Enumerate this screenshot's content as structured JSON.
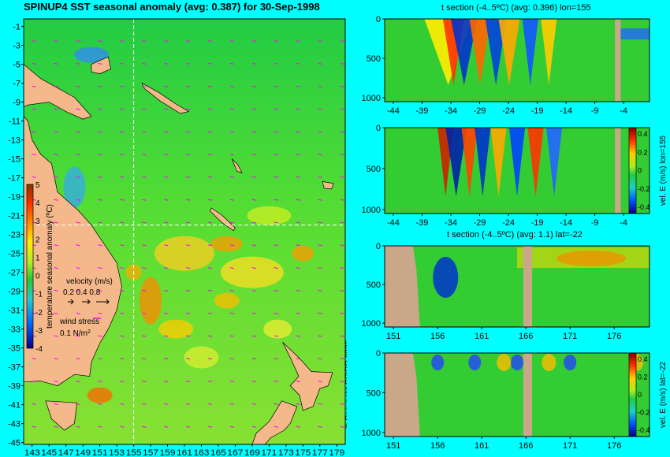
{
  "main_title": "SPINUP4 SST seasonal anomaly (avg: 0.387) for 30-Sep-1998",
  "copyright": "© Copyright CSIRO 2006",
  "colors": {
    "background": "#00ffff",
    "land": "#f5b88a",
    "section_land": "#c8a888",
    "field_base": "#33cc33",
    "warm": "#ff8800",
    "cold": "#0044ff",
    "vector": "#ff00ff",
    "crosshair": "#ffffff"
  },
  "map": {
    "lat_labels": [
      "-1",
      "-3",
      "-5",
      "-7",
      "-9",
      "-11",
      "-13",
      "-15",
      "-17",
      "-19",
      "-21",
      "-23",
      "-25",
      "-27",
      "-29",
      "-31",
      "-33",
      "-35",
      "-37",
      "-39",
      "-41",
      "-43",
      "-45"
    ],
    "lon_labels": [
      "143",
      "145",
      "147",
      "149",
      "151",
      "153",
      "155",
      "157",
      "159",
      "161",
      "163",
      "165",
      "167",
      "169",
      "171",
      "173",
      "175",
      "177",
      "179"
    ],
    "crosshair": {
      "lon": 155,
      "lat": -22
    },
    "colorbar": {
      "label": "temperature seasonal anomaly (ºC)",
      "ticks": [
        "5",
        "4",
        "3",
        "2",
        "1",
        "0",
        "-1",
        "-2",
        "-3",
        "-4"
      ]
    },
    "velocity_legend": {
      "title": "velocity (m/s)",
      "values": "0.2 0.4 0.8"
    },
    "wind_legend": {
      "title": "wind stress",
      "value": "0.1 N/m",
      "sup": "2"
    }
  },
  "chart_data": [
    {
      "type": "heatmap",
      "title": "t section (-4..5ºC) (avg: 0.396) lon=155",
      "x_ticks": [
        "-44",
        "-39",
        "-34",
        "-29",
        "-24",
        "-19",
        "-14",
        "-9",
        "-4"
      ],
      "y_ticks": [
        "0",
        "500",
        "1000"
      ],
      "xlim": [
        -45.5,
        0.5
      ],
      "ylim": [
        0,
        1050
      ]
    },
    {
      "type": "heatmap",
      "title": "",
      "x_ticks": [
        "-44",
        "-39",
        "-34",
        "-29",
        "-24",
        "-19",
        "-14",
        "-9",
        "-4"
      ],
      "y_ticks": [
        "0",
        "500",
        "1000"
      ],
      "xlim": [
        -45.5,
        0.5
      ],
      "ylim": [
        0,
        1050
      ],
      "colorbar_label": "vel. E (m/s) lon=155",
      "colorbar_ticks": [
        "0.4",
        "0.2",
        "0",
        "-0.2",
        "-0.4"
      ]
    },
    {
      "type": "heatmap",
      "title": "t section (-4..5ºC) (avg: 1.1) lat=-22",
      "x_ticks": [
        "151",
        "156",
        "161",
        "166",
        "171",
        "176"
      ],
      "y_ticks": [
        "0",
        "500",
        "1000"
      ],
      "xlim": [
        150,
        180
      ],
      "ylim": [
        0,
        1050
      ]
    },
    {
      "type": "heatmap",
      "title": "",
      "x_ticks": [
        "151",
        "156",
        "161",
        "166",
        "171",
        "176"
      ],
      "y_ticks": [
        "0",
        "500",
        "1000"
      ],
      "xlim": [
        150,
        180
      ],
      "ylim": [
        0,
        1050
      ],
      "colorbar_label": "vel. E (m/s) lat=-22",
      "colorbar_ticks": [
        "0.4",
        "0.2",
        "0",
        "-0.2",
        "-0.4"
      ]
    }
  ]
}
